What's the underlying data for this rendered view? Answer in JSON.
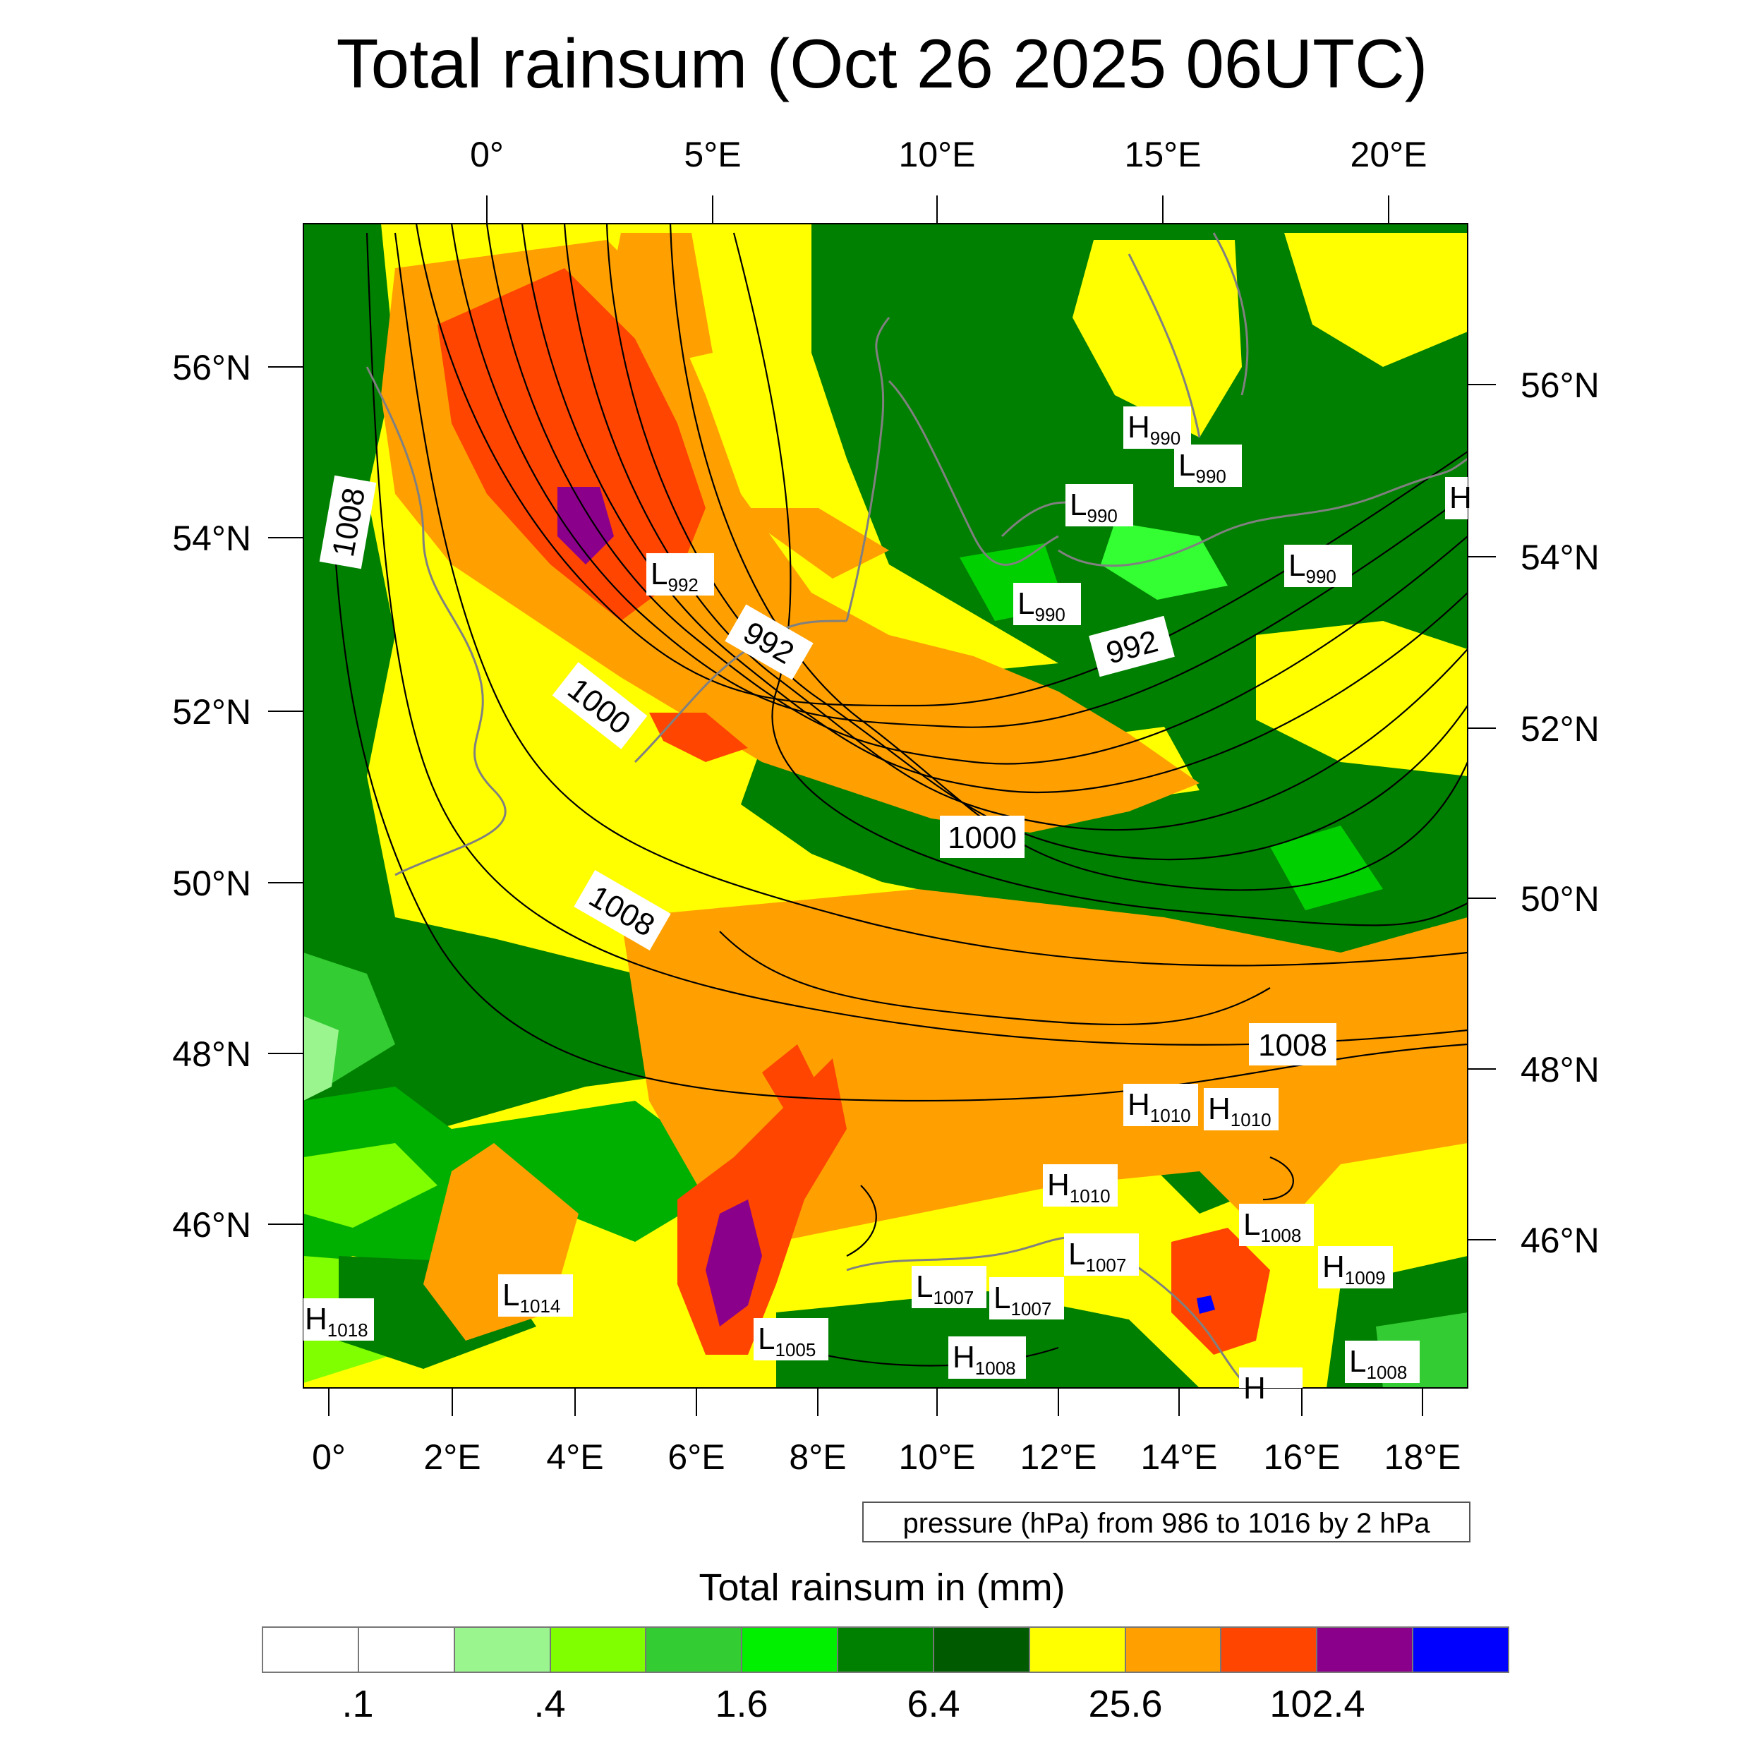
{
  "title": "Total rainsum (Oct 26 2025 06UTC)",
  "axes": {
    "top_lon_labels": [
      "0°",
      "5°E",
      "10°E",
      "15°E",
      "20°E"
    ],
    "bottom_lon_labels": [
      "0°",
      "2°E",
      "4°E",
      "6°E",
      "8°E",
      "10°E",
      "12°E",
      "14°E",
      "16°E",
      "18°E"
    ],
    "left_lat_labels": [
      "56°N",
      "54°N",
      "52°N",
      "50°N",
      "48°N",
      "46°N"
    ],
    "right_lat_labels": [
      "56°N",
      "54°N",
      "52°N",
      "50°N",
      "48°N",
      "46°N"
    ]
  },
  "isobar_labels": [
    "1008",
    "1000",
    "992",
    "1000",
    "1008",
    "992",
    "1008"
  ],
  "pressure_centers": [
    {
      "letter": "H",
      "value": "990"
    },
    {
      "letter": "L",
      "value": "990"
    },
    {
      "letter": "L",
      "value": "990"
    },
    {
      "letter": "L",
      "value": "992"
    },
    {
      "letter": "L",
      "value": "990"
    },
    {
      "letter": "L",
      "value": "990"
    },
    {
      "letter": "H",
      "value": ""
    },
    {
      "letter": "H",
      "value": "1010"
    },
    {
      "letter": "H",
      "value": "1010"
    },
    {
      "letter": "H",
      "value": "1010"
    },
    {
      "letter": "L",
      "value": "1008"
    },
    {
      "letter": "L",
      "value": "1007"
    },
    {
      "letter": "H",
      "value": "1009"
    },
    {
      "letter": "L",
      "value": "1007"
    },
    {
      "letter": "L",
      "value": "1007"
    },
    {
      "letter": "L",
      "value": "1014"
    },
    {
      "letter": "H",
      "value": "1018"
    },
    {
      "letter": "L",
      "value": "1005"
    },
    {
      "letter": "H",
      "value": "1008"
    },
    {
      "letter": "L",
      "value": "1008"
    },
    {
      "letter": "H",
      "value": ""
    }
  ],
  "contour_info": "pressure (hPa) from 986 to 1016 by 2 hPa",
  "legend": {
    "title": "Total rainsum in (mm)",
    "colors": [
      "#ffffff",
      "#ffffff",
      "#9bf58f",
      "#80ff00",
      "#33cc33",
      "#00f000",
      "#008000",
      "#005a00",
      "#ffff00",
      "#ffa000",
      "#ff4500",
      "#8b008b",
      "#0000ff"
    ],
    "labels": [
      ".1",
      ".4",
      "1.6",
      "6.4",
      "25.6",
      "102.4"
    ]
  }
}
